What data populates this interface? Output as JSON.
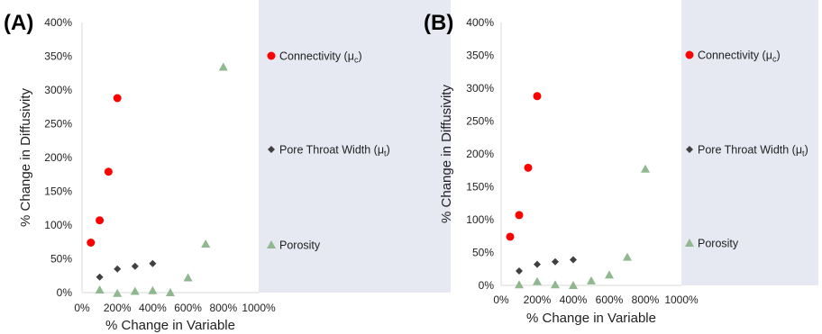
{
  "chart_data": [
    {
      "panel_label": "(A)",
      "type": "scatter",
      "xlabel": "% Change in Variable",
      "ylabel": "% Change in Diffusivity",
      "x_ticks": [
        "0%",
        "200%",
        "400%",
        "600%",
        "800%",
        "1000%"
      ],
      "y_ticks": [
        "0%",
        "50%",
        "100%",
        "150%",
        "200%",
        "250%",
        "300%",
        "350%",
        "400%"
      ],
      "xlim": [
        0,
        1000
      ],
      "ylim": [
        0,
        400
      ],
      "legend_position": "right",
      "series": [
        {
          "name": "Connectivity (μc)",
          "color": "#ff0000",
          "marker": "circle",
          "x": [
            50,
            100,
            150,
            200
          ],
          "y": [
            74,
            107,
            179,
            288
          ]
        },
        {
          "name": "Pore Throat Width (μt)",
          "color": "#404040",
          "marker": "diamond",
          "x": [
            100,
            200,
            300,
            400
          ],
          "y": [
            23,
            35,
            39,
            43
          ]
        },
        {
          "name": "Porosity",
          "color": "#8fb88f",
          "marker": "triangle",
          "x": [
            100,
            200,
            300,
            400,
            500,
            600,
            700,
            800
          ],
          "y": [
            4,
            -1,
            2,
            3,
            0,
            22,
            72,
            334
          ]
        }
      ]
    },
    {
      "panel_label": "(B)",
      "type": "scatter",
      "xlabel": "% Change in Variable",
      "ylabel": "% Change in Diffusivity",
      "x_ticks": [
        "0%",
        "200%",
        "400%",
        "600%",
        "800%",
        "1000%"
      ],
      "y_ticks": [
        "0%",
        "50%",
        "100%",
        "150%",
        "200%",
        "250%",
        "300%",
        "350%",
        "400%"
      ],
      "xlim": [
        0,
        1000
      ],
      "ylim": [
        0,
        400
      ],
      "legend_position": "right",
      "series": [
        {
          "name": "Connectivity (μc)",
          "color": "#ff0000",
          "marker": "circle",
          "x": [
            50,
            100,
            150,
            200
          ],
          "y": [
            74,
            107,
            179,
            288
          ]
        },
        {
          "name": "Pore Throat Width (μt)",
          "color": "#404040",
          "marker": "diamond",
          "x": [
            100,
            200,
            300,
            400
          ],
          "y": [
            22,
            32,
            36,
            39
          ]
        },
        {
          "name": "Porosity",
          "color": "#8fb88f",
          "marker": "triangle",
          "x": [
            100,
            200,
            300,
            400,
            500,
            600,
            700,
            800
          ],
          "y": [
            1,
            6,
            1,
            0,
            7,
            16,
            43,
            177
          ]
        }
      ]
    }
  ],
  "legend_shade_color": "#e6e9f2"
}
